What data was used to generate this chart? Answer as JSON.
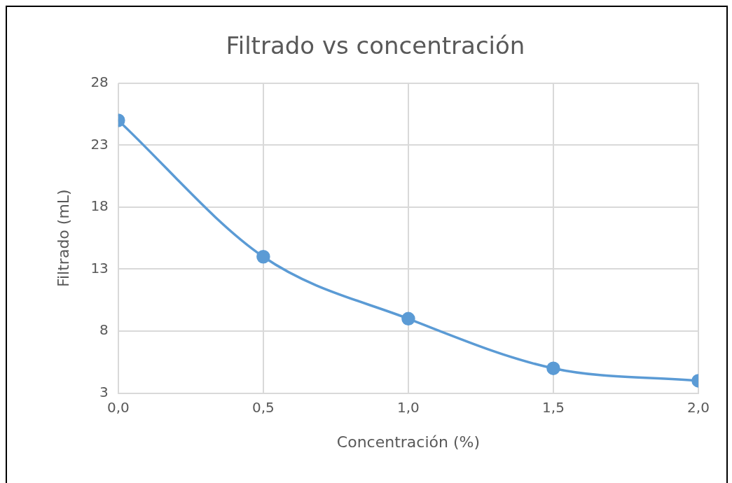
{
  "chart_data": {
    "type": "line",
    "title": "Filtrado vs concentración",
    "xlabel": "Concentración (%)",
    "ylabel": "Filtrado (mL)",
    "x": [
      0,
      0.5,
      1,
      1.5,
      2
    ],
    "series": [
      {
        "color": "#5b9bd5",
        "values": [
          25,
          14,
          9,
          5,
          4
        ]
      }
    ],
    "xlim": [
      0,
      2
    ],
    "xticks": [
      {
        "value": 0,
        "label": "0,0"
      },
      {
        "value": 0.5,
        "label": "0,5"
      },
      {
        "value": 1,
        "label": "1,0"
      },
      {
        "value": 1.5,
        "label": "1,5"
      },
      {
        "value": 2,
        "label": "2,0"
      }
    ],
    "ylim": [
      3,
      28
    ],
    "yticks": [
      3,
      8,
      13,
      18,
      23,
      28
    ],
    "grid": true,
    "legend": false,
    "marker": "circle",
    "line_style": "solid"
  }
}
